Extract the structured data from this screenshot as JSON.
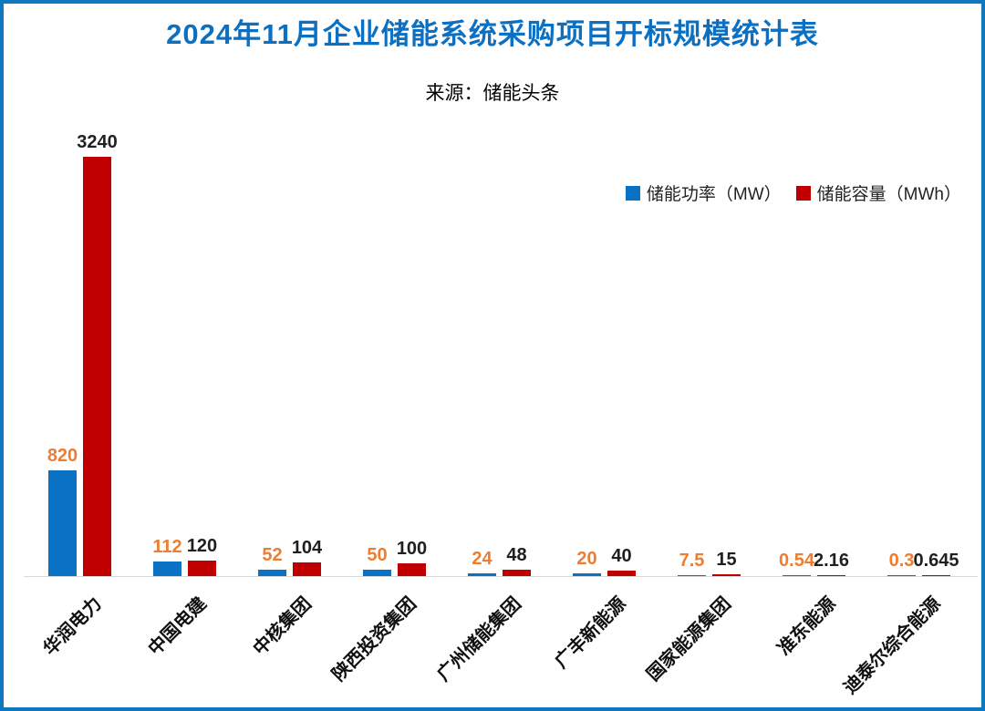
{
  "title": "2024年11月企业储能系统采购项目开标规模统计表",
  "subtitle": "来源：储能头条",
  "legend": [
    {
      "label": "储能功率（MW）",
      "color": "#0a72c4"
    },
    {
      "label": "储能容量（MWh）",
      "color": "#c00000"
    }
  ],
  "colors": {
    "title": "#0c70c2",
    "frame_border": "#0f76c0",
    "power_bar": "#0a72c4",
    "capacity_bar": "#c00000",
    "power_value_label": "#ed7d31",
    "capacity_value_label": "#1f1f1f",
    "axis_line": "#d9d9d9"
  },
  "chart_data": {
    "type": "bar",
    "title": "2024年11月企业储能系统采购项目开标规模统计表",
    "subtitle": "来源：储能头条",
    "categories": [
      "华润电力",
      "中国电建",
      "中核集团",
      "陕西投资集团",
      "广州储能集团",
      "广丰新能源",
      "国家能源集团",
      "准东能源",
      "迪泰尔综合能源"
    ],
    "series": [
      {
        "name": "储能功率（MW）",
        "color": "#0a72c4",
        "label_color": "#ed7d31",
        "values": [
          820,
          112,
          52,
          50,
          24,
          20,
          7.5,
          0.54,
          0.3
        ]
      },
      {
        "name": "储能容量（MWh）",
        "color": "#c00000",
        "label_color": "#1f1f1f",
        "values": [
          3240,
          120,
          104,
          100,
          48,
          40,
          15,
          2.16,
          0.645
        ]
      }
    ],
    "xlabel": "",
    "ylabel": "",
    "ylim": [
      0,
      3240
    ],
    "grid": false,
    "legend_position": "top-right",
    "value_labels_shown": true,
    "category_label_rotation_deg": -45
  }
}
